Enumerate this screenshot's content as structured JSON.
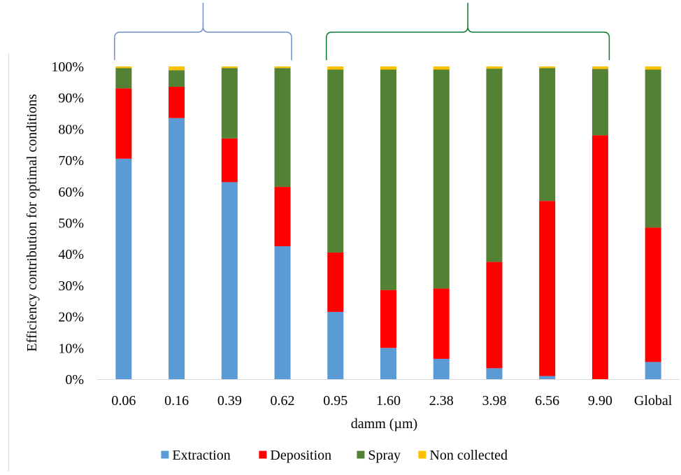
{
  "chart_data": {
    "type": "bar",
    "stacked": true,
    "title": "",
    "xlabel": "damm (µm)",
    "ylabel": "Efficiency contribution for optimal conditions",
    "categories": [
      "0.06",
      "0.16",
      "0.39",
      "0.62",
      "0.95",
      "1.60",
      "2.38",
      "3.98",
      "6.56",
      "9.90",
      "Global"
    ],
    "ylim": [
      0,
      100
    ],
    "yticks": [
      "0%",
      "10%",
      "20%",
      "30%",
      "40%",
      "50%",
      "60%",
      "70%",
      "80%",
      "90%",
      "100%"
    ],
    "grid": false,
    "legend_position": "bottom",
    "series": [
      {
        "name": "Extraction",
        "color": "#5b9bd5",
        "values": [
          70.5,
          83.5,
          63,
          42.5,
          21.5,
          10,
          6.5,
          3.5,
          1,
          0,
          5.5
        ]
      },
      {
        "name": "Deposition",
        "color": "#ff0000",
        "values": [
          22.5,
          10,
          14,
          19,
          19,
          18.5,
          22.5,
          34,
          56,
          78,
          43
        ]
      },
      {
        "name": "Spray",
        "color": "#548235",
        "values": [
          6.5,
          5.3,
          22.5,
          38,
          58.5,
          70.5,
          70,
          61.8,
          42.5,
          21.2,
          50.5
        ]
      },
      {
        "name": "Non collected",
        "color": "#ffc000",
        "values": [
          0.5,
          1.2,
          0.5,
          0.5,
          1,
          1,
          1,
          0.7,
          0.5,
          0.8,
          1
        ]
      }
    ],
    "annotations": [
      {
        "type": "brace",
        "color": "#6e8fc7",
        "from_category": "0.06",
        "to_category": "0.62"
      },
      {
        "type": "brace",
        "color": "#0b7a2e",
        "from_category": "0.95",
        "to_category": "9.90"
      }
    ]
  }
}
